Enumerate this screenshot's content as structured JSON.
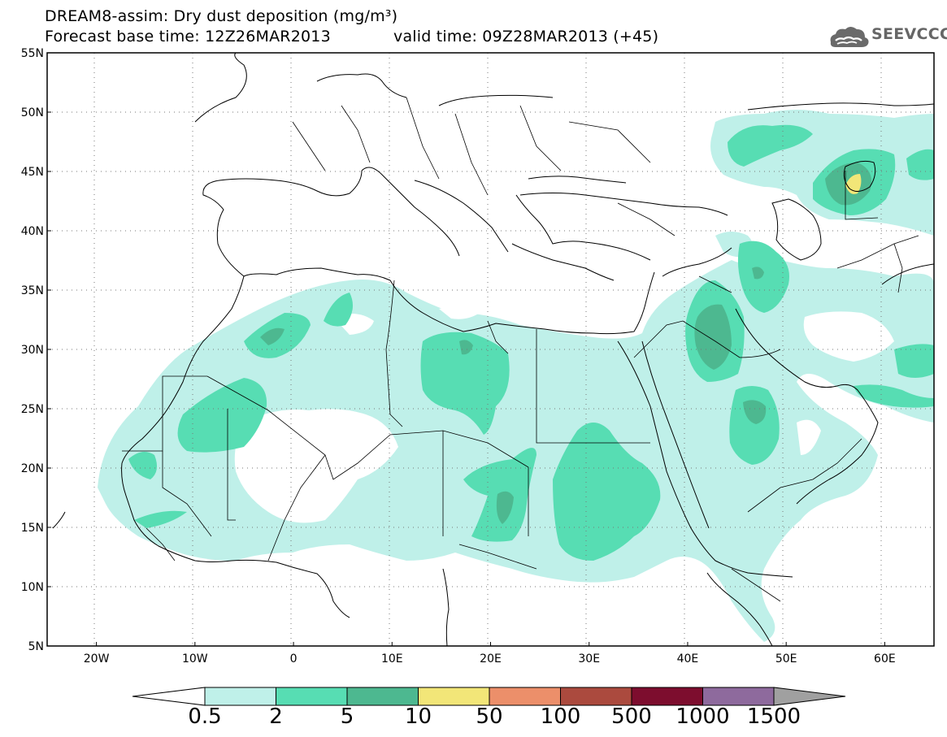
{
  "header": {
    "title_line1": "DREAM8-assim: Dry dust deposition (mg/m³)",
    "base_time": "Forecast base time: 12Z26MAR2013",
    "valid_time": "valid time: 09Z28MAR2013 (+45)",
    "logo_text": "SEEVCCC"
  },
  "map": {
    "lon_range": [
      -25,
      65
    ],
    "lat_range": [
      5,
      55
    ],
    "lat_ticks": [
      "55N",
      "50N",
      "45N",
      "40N",
      "35N",
      "30N",
      "25N",
      "20N",
      "15N",
      "10N",
      "5N"
    ],
    "lat_values": [
      55,
      50,
      45,
      40,
      35,
      30,
      25,
      20,
      15,
      10,
      5
    ],
    "lon_ticks": [
      "20W",
      "10W",
      "0",
      "10E",
      "20E",
      "30E",
      "40E",
      "50E",
      "60E"
    ],
    "lon_values": [
      -20,
      -10,
      0,
      10,
      20,
      30,
      40,
      50,
      60
    ],
    "grid": "dotted"
  },
  "legend": {
    "labels": [
      "0.5",
      "2",
      "5",
      "10",
      "50",
      "100",
      "500",
      "1000",
      "1500"
    ],
    "colors": [
      "#bff0e9",
      "#57ddb3",
      "#4db890",
      "#f2e678",
      "#ec8f6a",
      "#ab4a3e",
      "#7d0d2e",
      "#8e6a9d"
    ],
    "arrow_left_color": "#ffffff",
    "arrow_right_color": "#a0a0a0"
  }
}
